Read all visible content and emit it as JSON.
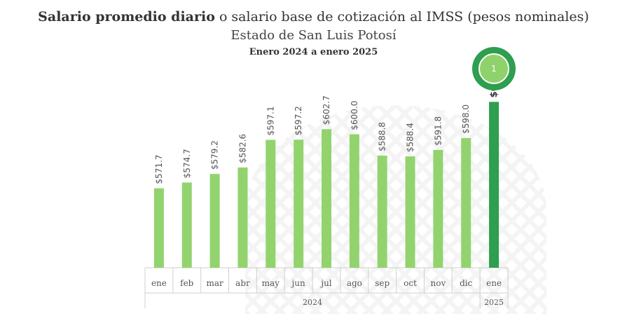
{
  "title_bold": "Salario promedio diario",
  "title_rest": " o salario base de cotización al IMSS (pesos nominales)",
  "subtitle": "Estado de San Luis Potosí",
  "period": "Enero 2024 a enero 2025",
  "badge": "1",
  "colors": {
    "bar": "#92d36e",
    "highlight": "#2e9e4f",
    "axis": "#cfcfcf"
  },
  "chart_data": {
    "type": "bar",
    "categories": [
      "ene",
      "feb",
      "mar",
      "abr",
      "may",
      "jun",
      "jul",
      "ago",
      "sep",
      "oct",
      "nov",
      "dic",
      "ene"
    ],
    "values": [
      571.7,
      574.7,
      579.2,
      582.6,
      597.1,
      597.2,
      602.7,
      600.0,
      588.8,
      588.4,
      591.8,
      598.0,
      617.0
    ],
    "labels": [
      "$571.7",
      "$574.7",
      "$579.2",
      "$582.6",
      "$597.1",
      "$597.2",
      "$602.7",
      "$600.0",
      "$588.8",
      "$588.4",
      "$591.8",
      "$598.0",
      "$617.0"
    ],
    "highlight_index": 12,
    "years": [
      {
        "label": "2024",
        "from": 0,
        "to": 11
      },
      {
        "label": "2025",
        "from": 12,
        "to": 12
      }
    ],
    "ylim": [
      530,
      630
    ]
  }
}
